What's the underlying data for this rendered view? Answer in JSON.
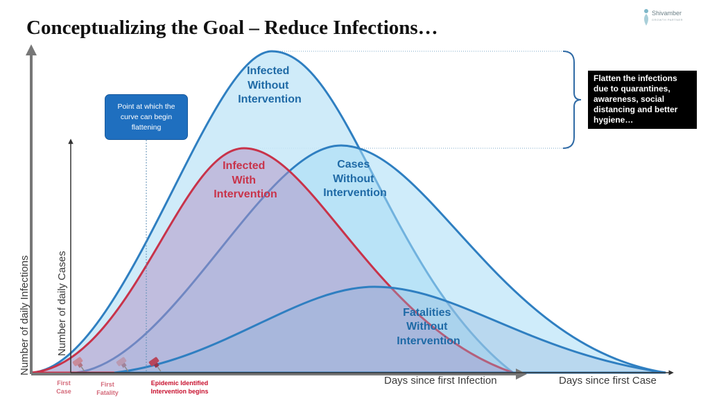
{
  "title": "Conceptualizing the Goal – Reduce Infections…",
  "logo": {
    "name": "Shivamber",
    "tagline": "GROWTH PARTNER"
  },
  "curves": {
    "infected_without": {
      "label_lines": [
        "Infected",
        "Without",
        "Intervention"
      ],
      "color": "#1f6aa6"
    },
    "infected_with": {
      "label_lines": [
        "Infected",
        "With",
        "Intervention"
      ],
      "color": "#c8334a"
    },
    "cases_without": {
      "label_lines": [
        "Cases",
        "Without",
        "Intervention"
      ],
      "color": "#1f6aa6"
    },
    "fatalities_without": {
      "label_lines": [
        "Fatalities",
        "Without",
        "Intervention"
      ],
      "color": "#1f6aa6"
    }
  },
  "callout": {
    "lines": [
      "Point at which the",
      "curve can begin",
      "flattening"
    ]
  },
  "flatten_note": {
    "lines": [
      "Flatten the infections",
      "due to quarantines,",
      "awareness, social",
      "distancing and better",
      "hygiene…"
    ]
  },
  "axes": {
    "y_outer": "Number of daily Infections",
    "y_inner": "Number of daily Cases",
    "x_infection": "Days since first Infection",
    "x_case": "Days since first Case"
  },
  "markers": {
    "first_case": {
      "lines": [
        "First",
        "Case"
      ],
      "color": "#d46a7a"
    },
    "first_fatality": {
      "lines": [
        "First",
        "Fatality"
      ],
      "color": "#d46a7a"
    },
    "epidemic": {
      "lines": [
        "Epidemic Identified",
        "Intervention begins"
      ],
      "color": "#c8102e"
    }
  },
  "colors": {
    "blue_stroke": "#2f7fc1",
    "red_stroke": "#c8334a",
    "blue_fill": "#bfe3f7",
    "red_fill": "#d8a7b8",
    "purple_fill": "#a9a6cf"
  }
}
